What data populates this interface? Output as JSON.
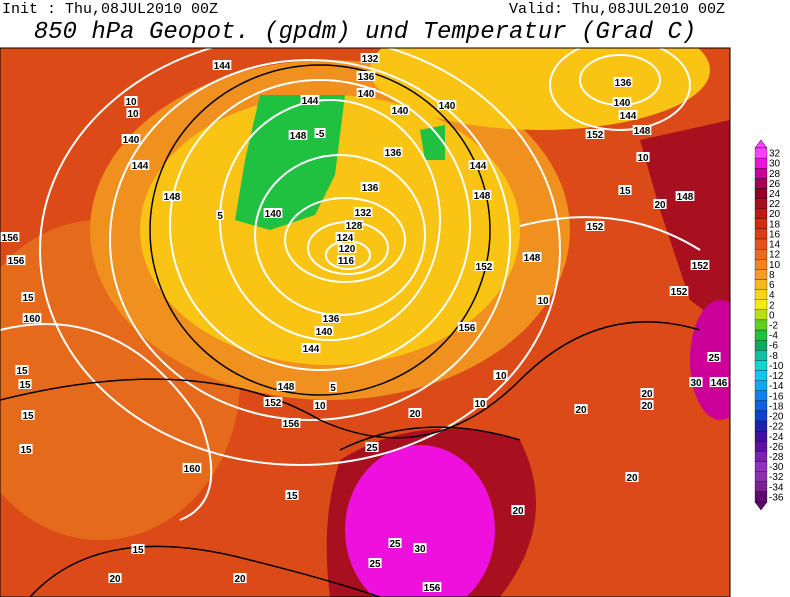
{
  "header": {
    "init": "Init : Thu,08JUL2010 00Z",
    "valid": "Valid: Thu,08JUL2010 00Z",
    "title": "850 hPa Geopot. (gpdm) und Temperatur (Grad C)"
  },
  "colorbar": {
    "levels": [
      "32",
      "30",
      "28",
      "26",
      "24",
      "22",
      "20",
      "18",
      "16",
      "14",
      "12",
      "10",
      "8",
      "6",
      "4",
      "2",
      "0",
      "-2",
      "-4",
      "-6",
      "-8",
      "-10",
      "-12",
      "-14",
      "-16",
      "-18",
      "-20",
      "-22",
      "-24",
      "-26",
      "-28",
      "-30",
      "-32",
      "-34",
      "-36"
    ],
    "colors": [
      "#ff40ff",
      "#ee10dd",
      "#cc0099",
      "#aa0055",
      "#900028",
      "#a81020",
      "#c01a10",
      "#d42a10",
      "#e03c14",
      "#e8521a",
      "#ee6a1e",
      "#f2821f",
      "#f69c20",
      "#f9b81a",
      "#fbd412",
      "#f5ec10",
      "#b8e010",
      "#60d020",
      "#20c040",
      "#10a860",
      "#10c0a0",
      "#10d8d0",
      "#10c8f0",
      "#10a8f0",
      "#1080f0",
      "#1060e0",
      "#1040d0",
      "#2020b0",
      "#4010a0",
      "#6010a0",
      "#8020b0",
      "#9030c0",
      "#8a30b0",
      "#7a2090",
      "#600a70"
    ]
  },
  "contour_labels": [
    "144",
    "132",
    "136",
    "140",
    "144",
    "140",
    "140",
    "148",
    "-5",
    "136",
    "144",
    "148",
    "136",
    "140",
    "132",
    "128",
    "124",
    "120",
    "116",
    "148",
    "144",
    "140",
    "152",
    "148",
    "152",
    "156",
    "136",
    "140",
    "144",
    "148",
    "152",
    "156",
    "160",
    "160",
    "156",
    "156",
    "136",
    "140",
    "144",
    "148",
    "152",
    "148",
    "152",
    "152",
    "15",
    "15",
    "15",
    "15",
    "15",
    "15",
    "15",
    "20",
    "20",
    "20",
    "20",
    "20",
    "20",
    "20",
    "20",
    "20",
    "25",
    "25",
    "25",
    "30",
    "10",
    "10",
    "10",
    "10",
    "15",
    "20",
    "10",
    "10",
    "5",
    "5",
    "10",
    "156",
    "30",
    "25",
    "146"
  ]
}
